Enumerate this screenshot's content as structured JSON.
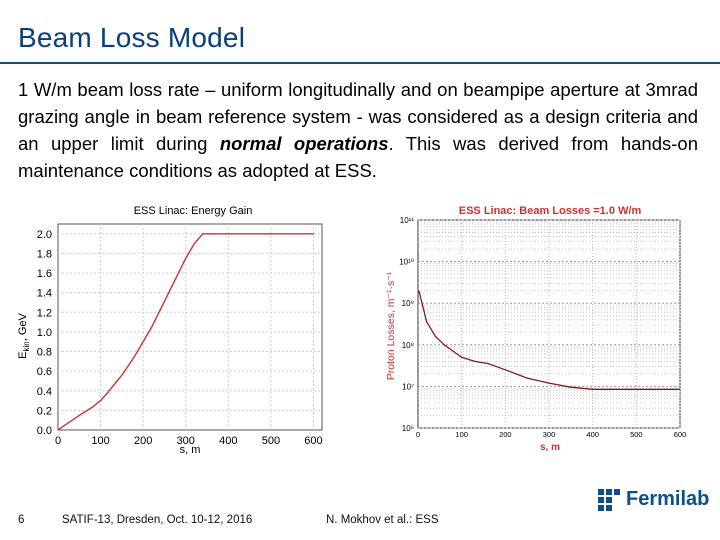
{
  "slide": {
    "title": "Beam Loss Model",
    "body_pre": "1 W/m beam loss rate – uniform longitudinally and on beampipe aperture at 3mrad grazing angle in beam reference system - was considered as a design criteria and an upper limit during ",
    "body_emph": "normal operations",
    "body_post": ". This was derived from hands-on maintenance conditions as adopted at ESS."
  },
  "footer": {
    "page": "6",
    "event": "SATIF-13, Dresden, Oct. 10-12, 2016",
    "author": "N. Mokhov et al.: ESS",
    "logo_text": "Fermilab"
  },
  "colors": {
    "title": "#0b3f7a",
    "curve": "#d03030",
    "brand": "#0b4f8c"
  },
  "chart_data": [
    {
      "type": "line",
      "title": "ESS Linac: Energy Gain",
      "xlabel": "s, m",
      "ylabel_main": "E",
      "ylabel_sub": "kin",
      "ylabel_rest": ", GeV",
      "xlim": [
        0,
        620
      ],
      "ylim": [
        0,
        2.1
      ],
      "xticks": [
        "0",
        "100",
        "200",
        "300",
        "400",
        "500",
        "600"
      ],
      "yticks": [
        "0.0",
        "0.2",
        "0.4",
        "0.6",
        "0.8",
        "1.0",
        "1.2",
        "1.4",
        "1.6",
        "1.8",
        "2.0"
      ],
      "x": [
        0,
        20,
        50,
        80,
        100,
        120,
        150,
        180,
        220,
        260,
        300,
        320,
        340,
        360,
        400,
        500,
        600
      ],
      "y": [
        0.0,
        0.06,
        0.15,
        0.23,
        0.3,
        0.4,
        0.56,
        0.75,
        1.05,
        1.4,
        1.75,
        1.9,
        2.0,
        2.0,
        2.0,
        2.0,
        2.0
      ]
    },
    {
      "type": "line",
      "title": "ESS Linac: Beam Losses =1.0 W/m",
      "xlabel": "s, m",
      "ylabel": "Proton Losses, m⁻¹·s⁻¹",
      "yscale": "log",
      "xlim": [
        0,
        600
      ],
      "ylim_exp": [
        6,
        11
      ],
      "xticks": [
        "0",
        "100",
        "200",
        "300",
        "400",
        "500",
        "600"
      ],
      "yticks": [
        "10⁶",
        "10⁷",
        "10⁸",
        "10⁹",
        "10¹⁰",
        "10¹¹"
      ],
      "x": [
        2,
        8,
        20,
        40,
        60,
        80,
        100,
        130,
        160,
        200,
        250,
        300,
        350,
        400,
        450,
        500,
        600
      ],
      "log10y": [
        9.3,
        9.05,
        8.55,
        8.2,
        8.0,
        7.85,
        7.7,
        7.6,
        7.55,
        7.4,
        7.2,
        7.08,
        6.98,
        6.93,
        6.93,
        6.93,
        6.93
      ]
    }
  ]
}
